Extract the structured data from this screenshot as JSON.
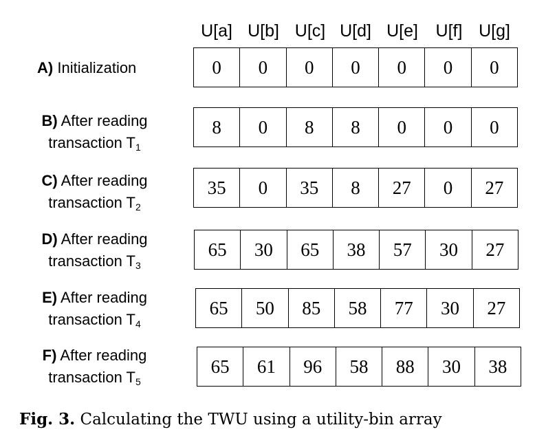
{
  "headers": [
    "U[a]",
    "U[b]",
    "U[c]",
    "U[d]",
    "U[e]",
    "U[f]",
    "U[g]"
  ],
  "rows": [
    {
      "letter": "A)",
      "line1": "Initialization",
      "line2": "",
      "sub": "",
      "values": [
        "0",
        "0",
        "0",
        "0",
        "0",
        "0",
        "0"
      ]
    },
    {
      "letter": "B)",
      "line1": "After reading",
      "line2": "transaction T",
      "sub": "1",
      "values": [
        "8",
        "0",
        "8",
        "8",
        "0",
        "0",
        "0"
      ]
    },
    {
      "letter": "C)",
      "line1": "After reading",
      "line2": "transaction T",
      "sub": "2",
      "values": [
        "35",
        "0",
        "35",
        "8",
        "27",
        "0",
        "27"
      ]
    },
    {
      "letter": "D)",
      "line1": "After reading",
      "line2": "transaction T",
      "sub": "3",
      "values": [
        "65",
        "30",
        "65",
        "38",
        "57",
        "30",
        "27"
      ]
    },
    {
      "letter": "E)",
      "line1": "After reading",
      "line2": "transaction T",
      "sub": "4",
      "values": [
        "65",
        "50",
        "85",
        "58",
        "77",
        "30",
        "27"
      ]
    },
    {
      "letter": "F)",
      "line1": "After reading",
      "line2": "transaction T",
      "sub": "5",
      "values": [
        "65",
        "61",
        "96",
        "58",
        "88",
        "30",
        "38"
      ]
    }
  ],
  "caption": {
    "fig": "Fig. 3.",
    "text": "Calculating the TWU using a utility-bin array"
  }
}
